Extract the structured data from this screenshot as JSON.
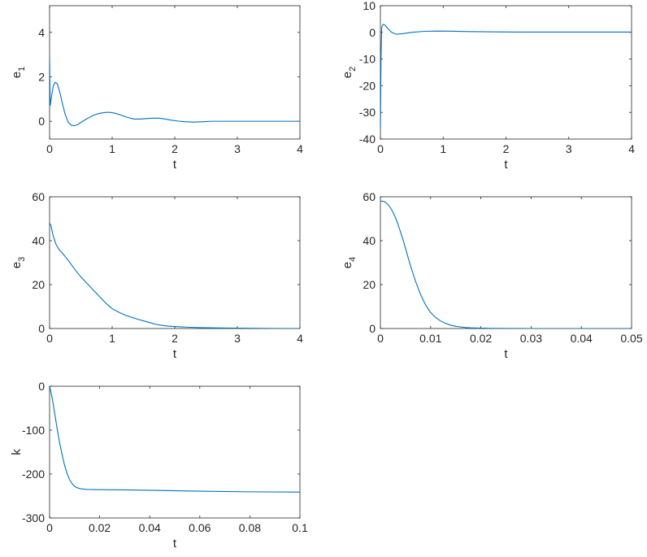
{
  "chart_data": [
    {
      "type": "line",
      "xlabel": "t",
      "ylabel": "e",
      "ylabel_sub": "1",
      "xlim": [
        0,
        4
      ],
      "ylim": [
        -0.8,
        5.2
      ],
      "xticks": [
        0,
        1,
        2,
        3,
        4
      ],
      "yticks": [
        0,
        2,
        4
      ],
      "grid": false,
      "series": [
        {
          "color": "#0072BD",
          "x": [
            0,
            0.01,
            0.03,
            0.06,
            0.09,
            0.12,
            0.16,
            0.2,
            0.25,
            0.3,
            0.35,
            0.4,
            0.45,
            0.5,
            0.6,
            0.7,
            0.8,
            0.9,
            0.97,
            1.05,
            1.15,
            1.25,
            1.35,
            1.45,
            1.55,
            1.65,
            1.75,
            1.85,
            1.95,
            2.05,
            2.15,
            2.3,
            2.45,
            2.6,
            2.8,
            3.0,
            3.5,
            4.0
          ],
          "y": [
            3.0,
            0.7,
            1.1,
            1.6,
            1.75,
            1.7,
            1.35,
            0.85,
            0.3,
            -0.05,
            -0.18,
            -0.2,
            -0.15,
            -0.05,
            0.12,
            0.27,
            0.36,
            0.4,
            0.4,
            0.36,
            0.27,
            0.17,
            0.1,
            0.1,
            0.12,
            0.14,
            0.14,
            0.1,
            0.05,
            0.01,
            -0.02,
            -0.04,
            -0.02,
            0.0,
            0.0,
            0.0,
            0.0,
            0.0
          ]
        }
      ]
    },
    {
      "type": "line",
      "xlabel": "t",
      "ylabel": "e",
      "ylabel_sub": "2",
      "xlim": [
        0,
        4
      ],
      "ylim": [
        -40,
        10
      ],
      "xticks": [
        0,
        1,
        2,
        3,
        4
      ],
      "yticks": [
        10,
        0,
        -10,
        -20,
        -30,
        -40
      ],
      "grid": false,
      "series": [
        {
          "color": "#0072BD",
          "x": [
            0,
            0.01,
            0.02,
            0.03,
            0.05,
            0.08,
            0.12,
            0.18,
            0.25,
            0.35,
            0.5,
            0.7,
            0.9,
            1.1,
            1.4,
            1.8,
            2.2,
            2.6,
            3.0,
            3.5,
            4.0
          ],
          "y": [
            -37,
            -10,
            1.5,
            2.6,
            3.0,
            2.6,
            1.4,
            0.0,
            -0.7,
            -0.5,
            0.0,
            0.4,
            0.5,
            0.45,
            0.3,
            0.2,
            0.1,
            0.1,
            0.1,
            0.1,
            0.1
          ]
        }
      ]
    },
    {
      "type": "line",
      "xlabel": "t",
      "ylabel": "e",
      "ylabel_sub": "3",
      "xlim": [
        0,
        4
      ],
      "ylim": [
        0,
        60
      ],
      "xticks": [
        0,
        1,
        2,
        3,
        4
      ],
      "yticks": [
        0,
        20,
        40,
        60
      ],
      "grid": false,
      "series": [
        {
          "color": "#0072BD",
          "x": [
            0,
            0.02,
            0.06,
            0.1,
            0.15,
            0.2,
            0.3,
            0.4,
            0.5,
            0.6,
            0.7,
            0.8,
            0.9,
            1.0,
            1.1,
            1.2,
            1.3,
            1.4,
            1.5,
            1.6,
            1.7,
            1.8,
            1.9,
            2.0,
            2.2,
            2.4,
            2.6,
            2.8,
            3.0,
            3.2,
            3.5,
            4.0
          ],
          "y": [
            48,
            47,
            42,
            38.5,
            36,
            34.5,
            31,
            27,
            23.5,
            20.5,
            17.5,
            14.5,
            11.5,
            9,
            7.5,
            6.2,
            5.2,
            4.3,
            3.5,
            2.7,
            1.9,
            1.4,
            1.1,
            0.9,
            0.6,
            0.4,
            0.3,
            0.2,
            0.15,
            0.1,
            0.05,
            0.0
          ]
        }
      ]
    },
    {
      "type": "line",
      "xlabel": "t",
      "ylabel": "e",
      "ylabel_sub": "4",
      "xlim": [
        0,
        0.05
      ],
      "ylim": [
        0,
        60
      ],
      "xticks": [
        0,
        0.01,
        0.02,
        0.03,
        0.04,
        0.05
      ],
      "yticks": [
        0,
        20,
        40,
        60
      ],
      "grid": false,
      "series": [
        {
          "color": "#0072BD",
          "x": [
            0,
            0.0005,
            0.001,
            0.0015,
            0.002,
            0.0025,
            0.003,
            0.0035,
            0.004,
            0.0045,
            0.005,
            0.0055,
            0.006,
            0.0065,
            0.007,
            0.0075,
            0.008,
            0.0085,
            0.009,
            0.0095,
            0.01,
            0.011,
            0.012,
            0.013,
            0.014,
            0.015,
            0.016,
            0.017,
            0.018,
            0.02,
            0.022,
            0.025,
            0.03,
            0.035,
            0.04,
            0.05
          ],
          "y": [
            58,
            58,
            57.5,
            56.5,
            55,
            53,
            50.5,
            47.5,
            44,
            40.5,
            36.5,
            32.5,
            28.5,
            25,
            21.5,
            18.5,
            15.5,
            13,
            10.8,
            8.9,
            7.3,
            5.0,
            3.4,
            2.3,
            1.5,
            1.0,
            0.7,
            0.45,
            0.3,
            0.15,
            0.08,
            0.03,
            0.0,
            0.0,
            0.0,
            0.0
          ]
        }
      ]
    },
    {
      "type": "line",
      "xlabel": "t",
      "ylabel": "k",
      "xlim": [
        0,
        0.1
      ],
      "ylim": [
        -300,
        0
      ],
      "xticks": [
        0,
        0.02,
        0.04,
        0.06,
        0.08,
        0.1
      ],
      "yticks": [
        0,
        -100,
        -200,
        -300
      ],
      "grid": false,
      "series": [
        {
          "color": "#0072BD",
          "x": [
            0,
            0.0005,
            0.001,
            0.0015,
            0.002,
            0.003,
            0.004,
            0.005,
            0.006,
            0.007,
            0.008,
            0.009,
            0.01,
            0.011,
            0.012,
            0.013,
            0.015,
            0.02,
            0.03,
            0.04,
            0.06,
            0.08,
            0.1
          ],
          "y": [
            0,
            -12,
            -26,
            -42,
            -60,
            -96,
            -128,
            -156,
            -180,
            -199,
            -213,
            -222,
            -228,
            -231,
            -233,
            -234,
            -235,
            -235.5,
            -236,
            -237,
            -239,
            -240.5,
            -241
          ]
        }
      ]
    }
  ]
}
